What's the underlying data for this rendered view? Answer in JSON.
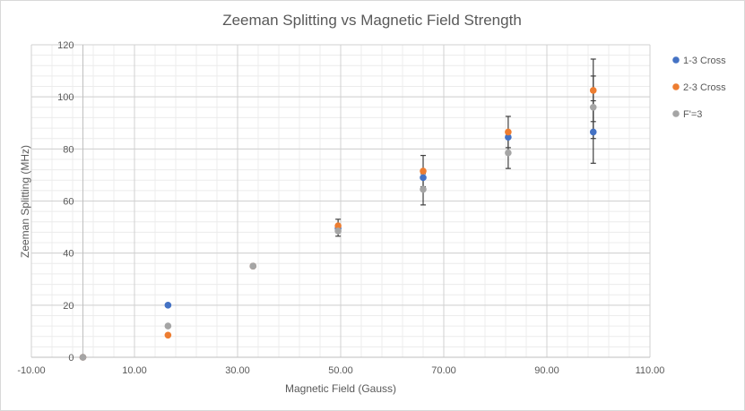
{
  "chart_data": {
    "type": "scatter",
    "title": "Zeeman Splitting vs Magnetic Field Strength",
    "xlabel": "Magnetic Field (Gauss)",
    "ylabel": "Zeeman Splitting (MHz)",
    "xlim": [
      -10,
      110
    ],
    "ylim": [
      0,
      120
    ],
    "x_ticks": [
      -10,
      10,
      30,
      50,
      70,
      90,
      110
    ],
    "x_tick_labels": [
      "-10.00",
      "10.00",
      "30.00",
      "50.00",
      "70.00",
      "90.00",
      "110.00"
    ],
    "y_ticks": [
      0,
      20,
      40,
      60,
      80,
      100,
      120
    ],
    "y_tick_labels": [
      "0",
      "20",
      "40",
      "60",
      "80",
      "100",
      "120"
    ],
    "grid": true,
    "legend_position": "right",
    "series": [
      {
        "name": "1-3 Cross",
        "color": "#4472c4",
        "points": [
          {
            "x": 0,
            "y": 0
          },
          {
            "x": 16.5,
            "y": 20
          },
          {
            "x": 33,
            "y": 35
          },
          {
            "x": 49.5,
            "y": 49.5
          },
          {
            "x": 66,
            "y": 69
          },
          {
            "x": 82.5,
            "y": 84.5
          },
          {
            "x": 99,
            "y": 86.5,
            "err": 12
          }
        ]
      },
      {
        "name": "2-3 Cross",
        "color": "#ed7d31",
        "points": [
          {
            "x": 0,
            "y": 0
          },
          {
            "x": 16.5,
            "y": 8.5
          },
          {
            "x": 33,
            "y": 35
          },
          {
            "x": 49.5,
            "y": 50.5,
            "err": 2.5
          },
          {
            "x": 66,
            "y": 71.5,
            "err": 6
          },
          {
            "x": 82.5,
            "y": 86.5,
            "err": 6
          },
          {
            "x": 99,
            "y": 102.5,
            "err": 12
          }
        ]
      },
      {
        "name": "F'=3",
        "color": "#a5a5a5",
        "points": [
          {
            "x": 0,
            "y": 0
          },
          {
            "x": 16.5,
            "y": 12
          },
          {
            "x": 33,
            "y": 35
          },
          {
            "x": 49.5,
            "y": 48.5,
            "err": 2
          },
          {
            "x": 66,
            "y": 64.5,
            "err": 6
          },
          {
            "x": 82.5,
            "y": 78.5,
            "err": 6
          },
          {
            "x": 99,
            "y": 96,
            "err": 12
          }
        ]
      }
    ]
  }
}
